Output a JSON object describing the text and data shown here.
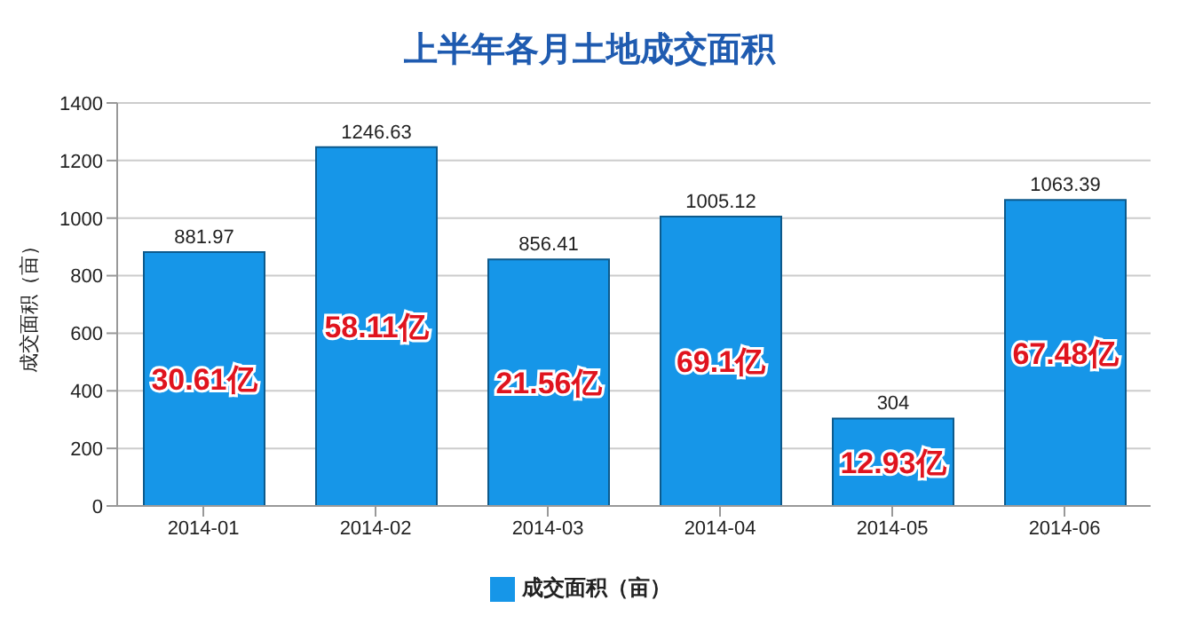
{
  "chart_data": {
    "type": "bar",
    "title": "上半年各月土地成交面积",
    "ylabel": "成交面积（亩）",
    "categories": [
      "2014-01",
      "2014-02",
      "2014-03",
      "2014-04",
      "2014-05",
      "2014-06"
    ],
    "series": [
      {
        "name": "成交面积（亩）",
        "color": "#1696e8",
        "values": [
          881.97,
          1246.63,
          856.41,
          1005.12,
          304,
          1063.39
        ]
      }
    ],
    "ylim": [
      0,
      1400
    ],
    "yticks": [
      0,
      200,
      400,
      600,
      800,
      1000,
      1200,
      1400
    ],
    "grid": "y",
    "legend": "bottom",
    "data_labels": true,
    "annotations": [
      "30.61亿",
      "58.11亿",
      "21.56亿",
      "69.1亿",
      "12.93亿",
      "67.48亿"
    ]
  }
}
